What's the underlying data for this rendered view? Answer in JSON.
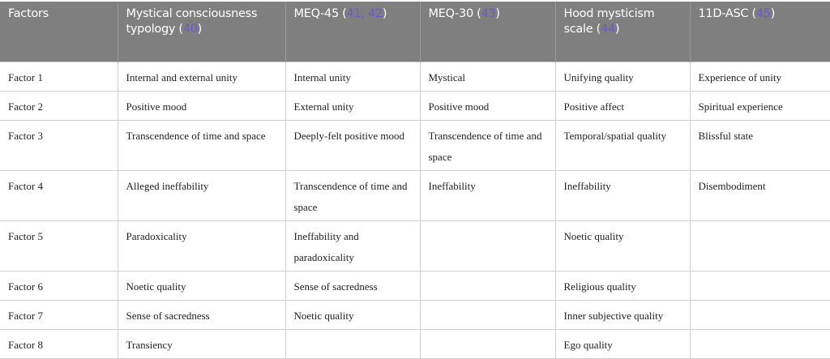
{
  "headers": [
    {
      "text": "Factors",
      "refs": ""
    },
    {
      "text": "Mystical consciousness typology (",
      "refs": "40",
      "close": ")"
    },
    {
      "text": "MEQ-45 (",
      "refs": "41, 42",
      "close": ")"
    },
    {
      "text": "MEQ-30 (",
      "refs": "43",
      "close": ")"
    },
    {
      "text": "Hood mysticism scale (",
      "refs": "44",
      "close": ")"
    },
    {
      "text": "11D-ASC (",
      "refs": "45",
      "close": ")"
    }
  ],
  "rows": [
    [
      "Factor 1",
      "Internal and external unity",
      "Internal unity",
      "Mystical",
      "Unifying quality",
      "Experience of unity"
    ],
    [
      "Factor 2",
      "Positive mood",
      "External unity",
      "Positive mood",
      "Positive affect",
      "Spiritual experience"
    ],
    [
      "Factor 3",
      "Transcendence of time and space",
      "Deeply-felt positive mood",
      "Transcendence of time and space",
      "Temporal/spatial quality",
      "Blissful state"
    ],
    [
      "Factor 4",
      "Alleged ineffability",
      "Transcendence of time and space",
      "Ineffability",
      "Ineffability",
      "Disembodiment"
    ],
    [
      "Factor 5",
      "Paradoxicality",
      "Ineffability and paradoxicality",
      "",
      "Noetic quality",
      ""
    ],
    [
      "Factor 6",
      "Noetic quality",
      "Sense of sacredness",
      "",
      "Religious quality",
      ""
    ],
    [
      "Factor 7",
      "Sense of sacredness",
      "Noetic quality",
      "",
      "Inner subjective quality",
      ""
    ],
    [
      "Factor 8",
      "Transiency",
      "",
      "",
      "Ego quality",
      ""
    ]
  ],
  "colors": {
    "header_bg": "#7f7f7f",
    "ref_link": "#6a5acd"
  }
}
